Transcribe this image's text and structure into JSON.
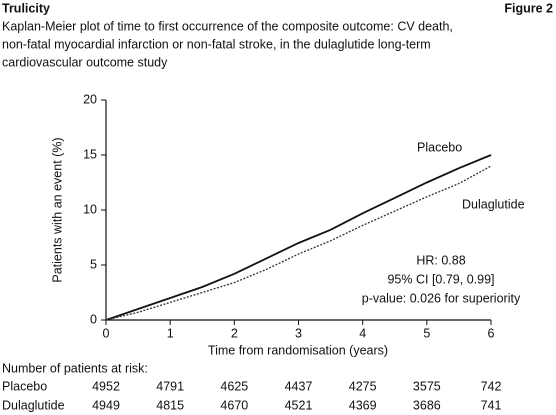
{
  "header": {
    "brand": "Trulicity",
    "figure": "Figure 2"
  },
  "chart_data": {
    "type": "line",
    "title": [
      "Kaplan-Meier plot of time to first occurrence of the composite outcome: CV death,",
      "non-fatal myocardial infarction or non-fatal stroke, in the dulaglutide long-term",
      "cardiovascular outcome study"
    ],
    "x_label": "Time from randomisation (years)",
    "y_label": "Patients with an event (%)",
    "x": [
      0,
      0.5,
      1,
      1.5,
      2,
      2.5,
      3,
      3.5,
      4,
      4.5,
      5,
      5.5,
      6
    ],
    "series": [
      {
        "name": "Placebo",
        "color": "#111111",
        "dashed": false,
        "values": [
          0,
          1.0,
          2.0,
          3.0,
          4.2,
          5.6,
          7.0,
          8.2,
          9.7,
          11.1,
          12.5,
          13.8,
          15.0
        ]
      },
      {
        "name": "Dulaglutide",
        "color": "#333333",
        "dashed": true,
        "values": [
          0,
          0.7,
          1.6,
          2.5,
          3.4,
          4.6,
          6.0,
          7.2,
          8.6,
          9.9,
          11.2,
          12.4,
          14.0
        ]
      }
    ],
    "xlim": [
      0,
      6
    ],
    "xticks": [
      0,
      1,
      2,
      3,
      4,
      5,
      6
    ],
    "ylim": [
      0,
      20
    ],
    "yticks": [
      0,
      5,
      10,
      15,
      20
    ],
    "grid": false,
    "annotations": [
      "HR: 0.88",
      "95% CI [0.79, 0.99]",
      "p-value: 0.026 for superiority"
    ],
    "at_risk": {
      "title": "Number of patients at risk:",
      "rows": [
        {
          "name": "Placebo",
          "values": [
            4952,
            4791,
            4625,
            4437,
            4275,
            3575,
            742
          ]
        },
        {
          "name": "Dulaglutide",
          "values": [
            4949,
            4815,
            4670,
            4521,
            4369,
            3686,
            741
          ]
        }
      ]
    }
  }
}
